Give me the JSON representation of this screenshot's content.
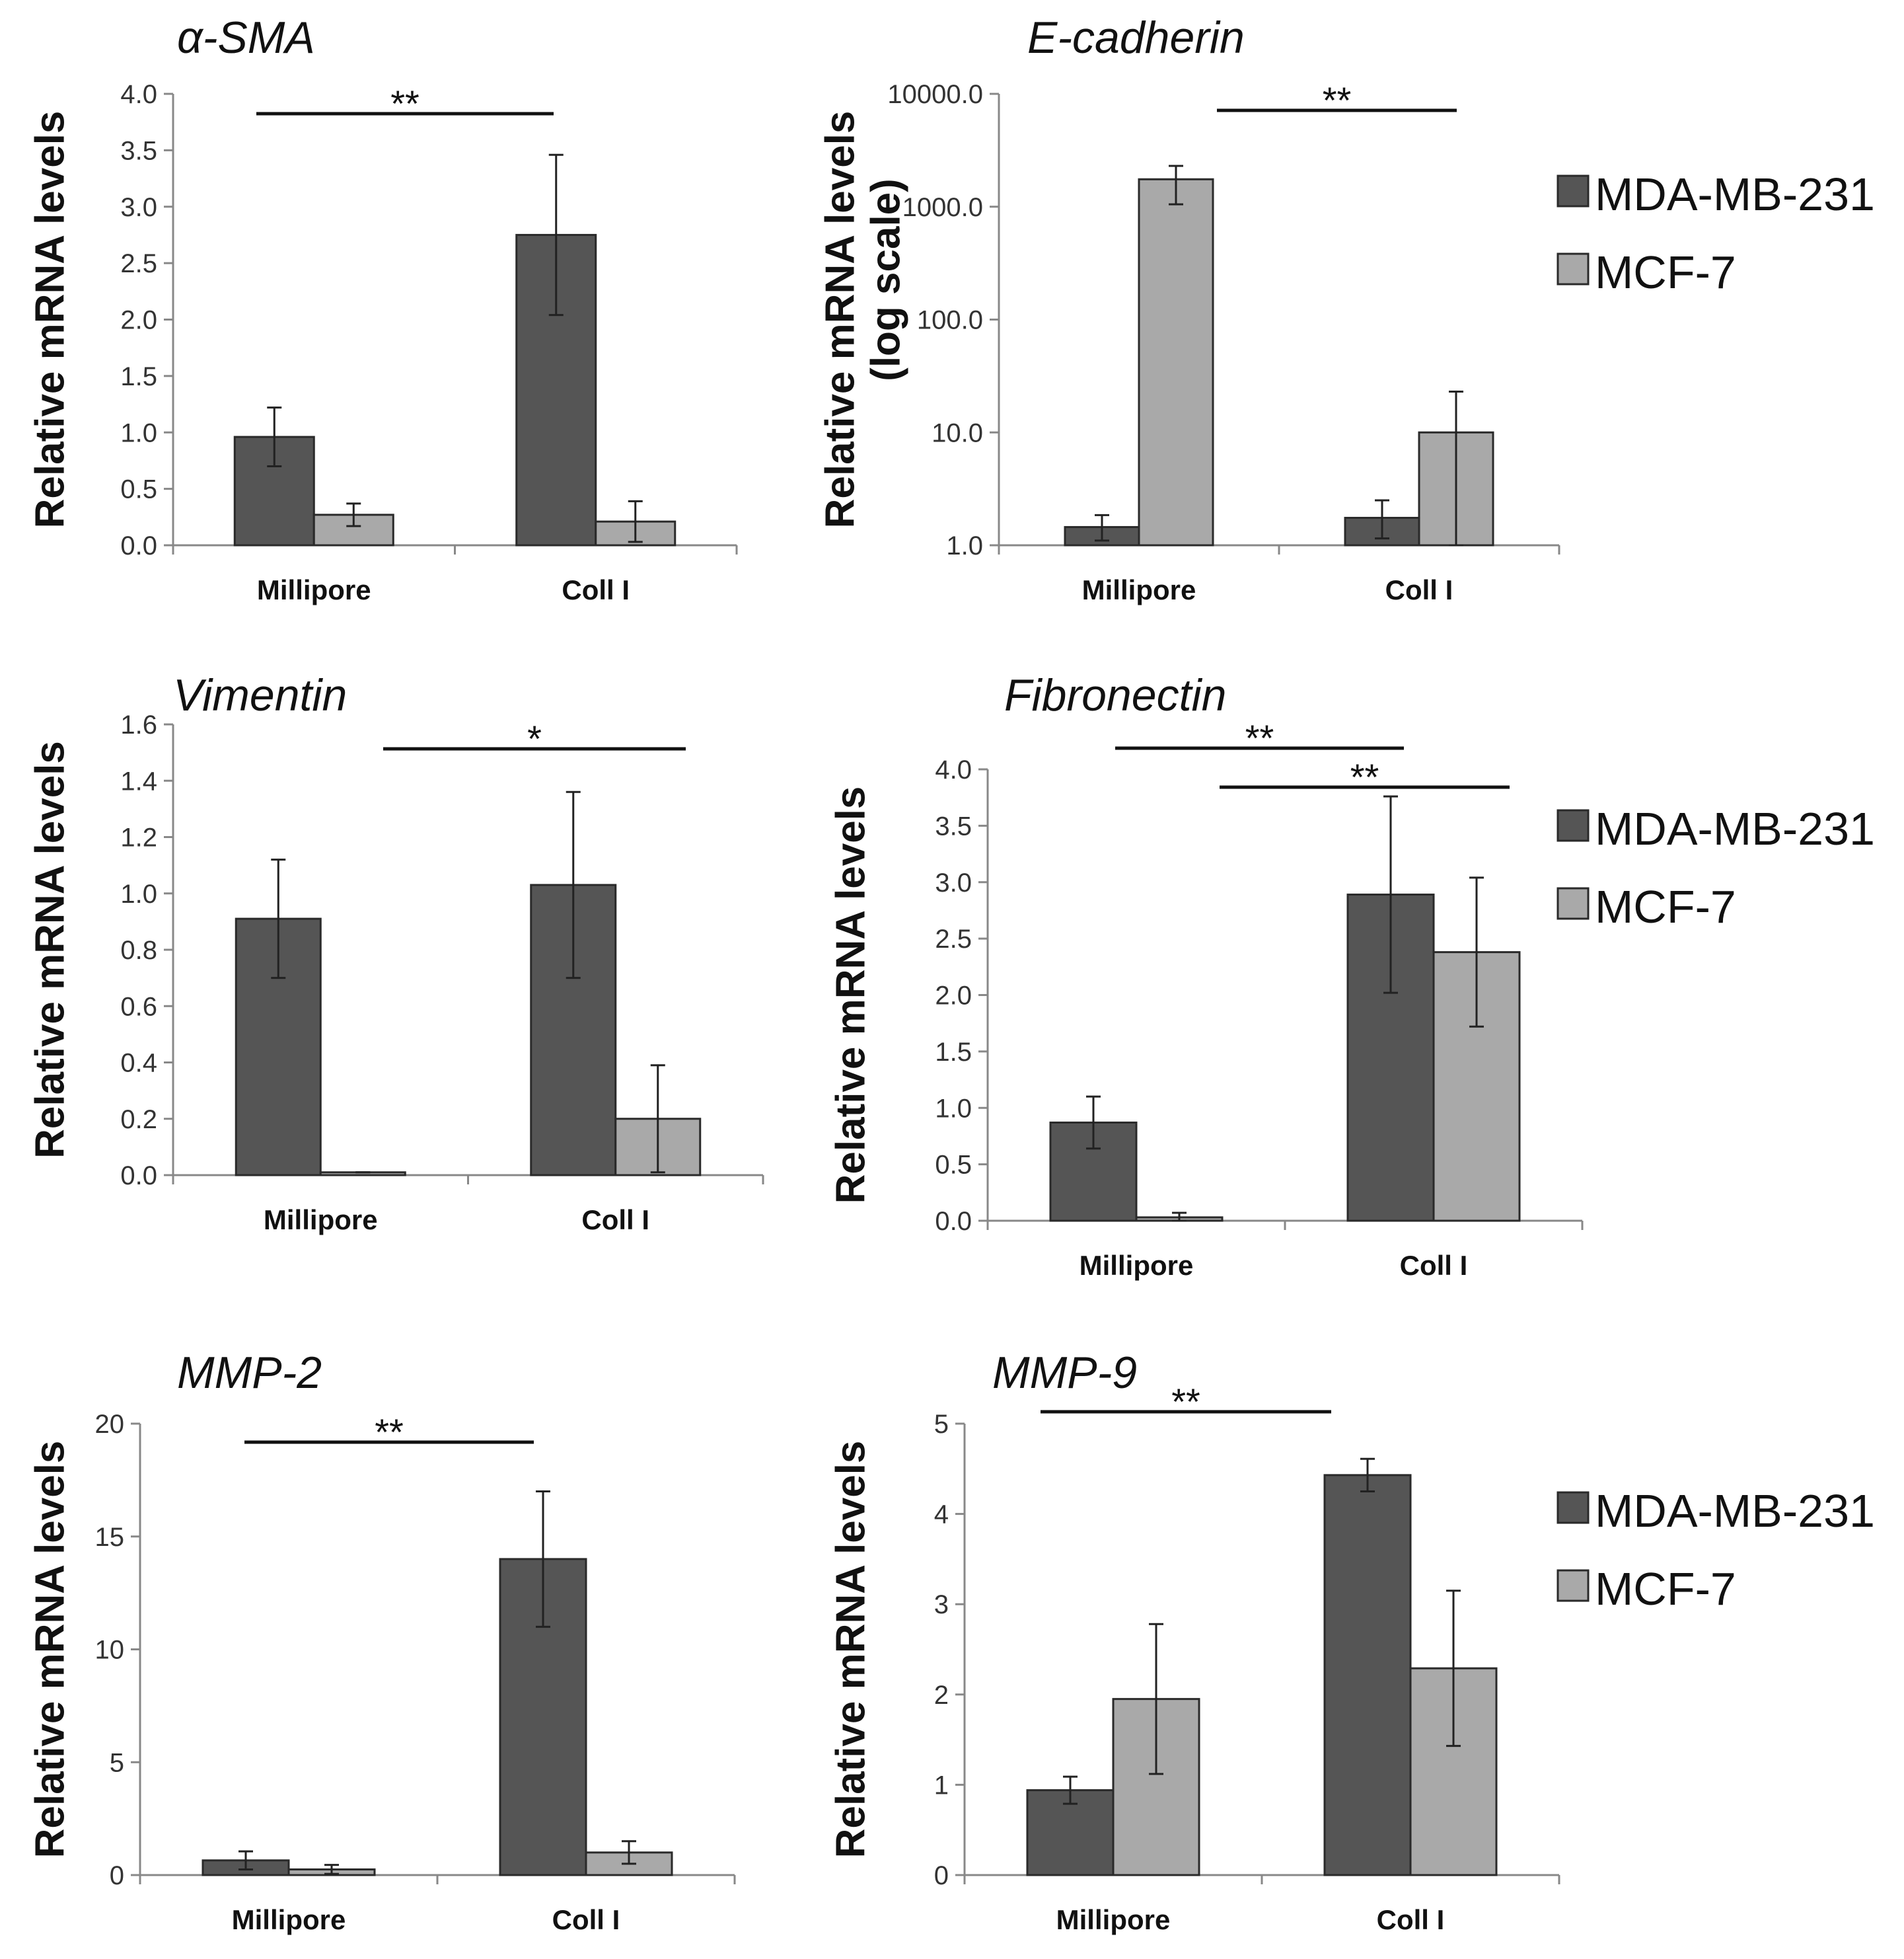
{
  "chart_data": [
    {
      "type": "bar",
      "title": "α-SMA",
      "ylabel": "Relative mRNA levels",
      "xlabel": "",
      "scale": "linear",
      "ylim": [
        0,
        4.0
      ],
      "yticks": [
        "0.0",
        "0.5",
        "1.0",
        "1.5",
        "2.0",
        "2.5",
        "3.0",
        "3.5",
        "4.0"
      ],
      "categories": [
        "Millipore",
        "Coll I"
      ],
      "series": [
        {
          "name": "MDA-MB-231",
          "values": [
            0.96,
            2.75
          ],
          "errors": [
            0.26,
            0.71
          ]
        },
        {
          "name": "MCF-7",
          "values": [
            0.27,
            0.21
          ],
          "errors": [
            0.1,
            0.18
          ]
        }
      ],
      "significance": [
        {
          "label": "**",
          "from": [
            0,
            0
          ],
          "to": [
            1,
            0
          ]
        }
      ]
    },
    {
      "type": "bar",
      "title": "E-cadherin",
      "ylabel": "Relative mRNA levels",
      "ylabel2": "(log scale)",
      "xlabel": "",
      "scale": "log",
      "ylim": [
        1,
        10000
      ],
      "yticks": [
        "1.0",
        "10.0",
        "100.0",
        "1000.0",
        "10000.0"
      ],
      "categories": [
        "Millipore",
        "Coll I"
      ],
      "series": [
        {
          "name": "MDA-MB-231",
          "values": [
            1.45,
            1.75
          ],
          "errors_low": [
            1.1,
            1.15
          ],
          "errors_high": [
            1.85,
            2.5
          ]
        },
        {
          "name": "MCF-7",
          "values": [
            1750,
            10.0
          ],
          "errors_low": [
            1050,
            1.0
          ],
          "errors_high": [
            2300,
            23.0
          ]
        }
      ],
      "significance": [
        {
          "label": "**",
          "from": [
            0,
            1
          ],
          "to": [
            1,
            1
          ]
        }
      ],
      "legend": [
        "MDA-MB-231",
        "MCF-7"
      ]
    },
    {
      "type": "bar",
      "title": "Vimentin",
      "ylabel": "Relative mRNA levels",
      "xlabel": "",
      "scale": "linear",
      "ylim": [
        0,
        1.6
      ],
      "yticks": [
        "0.0",
        "0.2",
        "0.4",
        "0.6",
        "0.8",
        "1.0",
        "1.2",
        "1.4",
        "1.6"
      ],
      "categories": [
        "Millipore",
        "Coll I"
      ],
      "series": [
        {
          "name": "MDA-MB-231",
          "values": [
            0.91,
            1.03
          ],
          "errors": [
            0.21,
            0.33
          ]
        },
        {
          "name": "MCF-7",
          "values": [
            0.01,
            0.2
          ],
          "errors": [
            0.0,
            0.19
          ]
        }
      ],
      "significance": [
        {
          "label": "*",
          "from": [
            0,
            1
          ],
          "to": [
            1,
            1
          ]
        }
      ]
    },
    {
      "type": "bar",
      "title": "Fibronectin",
      "ylabel": "Relative mRNA levels",
      "xlabel": "",
      "scale": "linear",
      "ylim": [
        0,
        4.0
      ],
      "yticks": [
        "0.0",
        "0.5",
        "1.0",
        "1.5",
        "2.0",
        "2.5",
        "3.0",
        "3.5",
        "4.0"
      ],
      "categories": [
        "Millipore",
        "Coll I"
      ],
      "series": [
        {
          "name": "MDA-MB-231",
          "values": [
            0.87,
            2.89
          ],
          "errors": [
            0.23,
            0.87
          ]
        },
        {
          "name": "MCF-7",
          "values": [
            0.03,
            2.38
          ],
          "errors": [
            0.04,
            0.66
          ]
        }
      ],
      "significance": [
        {
          "label": "**",
          "from": [
            0,
            0
          ],
          "to": [
            1,
            0
          ]
        },
        {
          "label": "**",
          "from": [
            0,
            1
          ],
          "to": [
            1,
            1
          ]
        }
      ],
      "legend": [
        "MDA-MB-231",
        "MCF-7"
      ]
    },
    {
      "type": "bar",
      "title": "MMP-2",
      "ylabel": "Relative mRNA levels",
      "xlabel": "",
      "scale": "linear",
      "ylim": [
        0,
        20
      ],
      "yticks": [
        "0",
        "5",
        "10",
        "15",
        "20"
      ],
      "categories": [
        "Millipore",
        "Coll I"
      ],
      "series": [
        {
          "name": "MDA-MB-231",
          "values": [
            0.65,
            14.0
          ],
          "errors": [
            0.4,
            3.0
          ]
        },
        {
          "name": "MCF-7",
          "values": [
            0.25,
            1.0
          ],
          "errors": [
            0.2,
            0.5
          ]
        }
      ],
      "significance": [
        {
          "label": "**",
          "from": [
            0,
            0
          ],
          "to": [
            1,
            0
          ]
        }
      ]
    },
    {
      "type": "bar",
      "title": "MMP-9",
      "ylabel": "Relative mRNA levels",
      "xlabel": "",
      "scale": "linear",
      "ylim": [
        0,
        5
      ],
      "yticks": [
        "0",
        "1",
        "2",
        "3",
        "4",
        "5"
      ],
      "categories": [
        "Millipore",
        "Coll I"
      ],
      "series": [
        {
          "name": "MDA-MB-231",
          "values": [
            0.94,
            4.43
          ],
          "errors": [
            0.15,
            0.18
          ]
        },
        {
          "name": "MCF-7",
          "values": [
            1.95,
            2.29
          ],
          "errors": [
            0.83,
            0.86
          ]
        }
      ],
      "significance": [
        {
          "label": "**",
          "from": [
            0,
            0
          ],
          "to": [
            1,
            0
          ]
        }
      ],
      "legend": [
        "MDA-MB-231",
        "MCF-7"
      ]
    }
  ],
  "colors": {
    "MDA-MB-231": "#555555",
    "MCF-7": "#a9a9a9",
    "axis": "#888888",
    "bar_stroke": "#2a2a2a",
    "text": "#111111"
  }
}
